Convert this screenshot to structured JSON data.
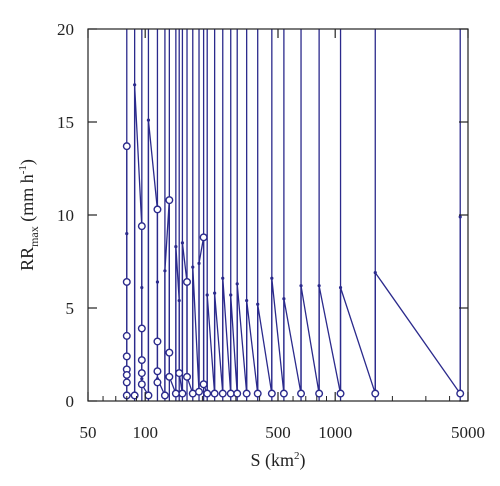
{
  "chart_data": {
    "type": "line",
    "xscale": "log",
    "xlim": [
      50,
      5000
    ],
    "ylim": [
      0,
      20
    ],
    "grid": false,
    "xticks": [
      50,
      100,
      500,
      1000,
      5000
    ],
    "xtick_labels": [
      "50",
      "100",
      "500",
      "1000",
      "5000"
    ],
    "yticks": [
      0,
      5,
      10,
      15,
      20
    ],
    "ytick_labels": [
      "0",
      "5",
      "10",
      "15",
      "20"
    ],
    "xlabel": {
      "main": "S (km",
      "sup": "2",
      "end": ")"
    },
    "ylabel": {
      "main": "RR",
      "sub": "max",
      "end": " (mm h",
      "sup": "-1",
      "end2": ")"
    },
    "colors": {
      "series": "#2b2a8c",
      "axis": "#222222",
      "background": "#ffffff"
    },
    "series": [
      {
        "line": [
          [
            80,
            13.7
          ],
          [
            80,
            9.0
          ],
          [
            80,
            6.4
          ],
          [
            80,
            3.5
          ],
          [
            80,
            2.4
          ],
          [
            80,
            1.7
          ],
          [
            80,
            1.4
          ],
          [
            80,
            1.0
          ],
          [
            80,
            0.3
          ],
          [
            88,
            0.3
          ],
          [
            88,
            17.0
          ],
          [
            96,
            9.4
          ],
          [
            96,
            6.1
          ],
          [
            96,
            3.9
          ],
          [
            96,
            2.2
          ],
          [
            96,
            1.5
          ],
          [
            96,
            1.2
          ],
          [
            96,
            0.9
          ],
          [
            104,
            0.3
          ],
          [
            104,
            15.1
          ],
          [
            116,
            10.3
          ],
          [
            116,
            6.4
          ],
          [
            116,
            3.2
          ],
          [
            116,
            1.6
          ],
          [
            116,
            1.2
          ],
          [
            127,
            0.3
          ],
          [
            127,
            7.0
          ],
          [
            134,
            10.8
          ],
          [
            134,
            2.6
          ],
          [
            134,
            1.3
          ],
          [
            145,
            0.4
          ],
          [
            145,
            8.3
          ],
          [
            151,
            5.4
          ],
          [
            151,
            1.5
          ],
          [
            157,
            0.4
          ],
          [
            157,
            8.5
          ],
          [
            166,
            6.4
          ],
          [
            166,
            1.3
          ],
          [
            178,
            0.4
          ],
          [
            178,
            7.2
          ],
          [
            192,
            0.5
          ],
          [
            192,
            7.4
          ],
          [
            203,
            8.8
          ],
          [
            203,
            0.9
          ],
          [
            212,
            0.4
          ],
          [
            212,
            5.7
          ],
          [
            232,
            0.4
          ],
          [
            232,
            5.8
          ],
          [
            256,
            0.4
          ],
          [
            256,
            6.6
          ],
          [
            282,
            0.4
          ],
          [
            282,
            5.7
          ],
          [
            305,
            0.4
          ],
          [
            305,
            6.3
          ],
          [
            342,
            0.4
          ],
          [
            342,
            5.4
          ],
          [
            391,
            0.4
          ],
          [
            391,
            5.2
          ],
          [
            464,
            0.4
          ],
          [
            464,
            6.6
          ],
          [
            537,
            0.4
          ],
          [
            537,
            5.5
          ],
          [
            661,
            0.4
          ],
          [
            661,
            6.2
          ],
          [
            823,
            0.4
          ],
          [
            823,
            6.2
          ],
          [
            1067,
            0.4
          ],
          [
            1067,
            6.1
          ],
          [
            1625,
            0.4
          ],
          [
            1625,
            6.9
          ],
          [
            4550,
            0.4
          ],
          [
            4550,
            9.9
          ]
        ],
        "circles": [
          [
            80,
            13.7
          ],
          [
            80,
            6.4
          ],
          [
            80,
            3.5
          ],
          [
            80,
            2.4
          ],
          [
            80,
            1.7
          ],
          [
            80,
            1.4
          ],
          [
            80,
            1.0
          ],
          [
            80,
            0.3
          ],
          [
            88,
            0.3
          ],
          [
            96,
            9.4
          ],
          [
            96,
            3.9
          ],
          [
            96,
            2.2
          ],
          [
            96,
            1.5
          ],
          [
            96,
            0.9
          ],
          [
            104,
            0.3
          ],
          [
            116,
            10.3
          ],
          [
            116,
            3.2
          ],
          [
            116,
            1.6
          ],
          [
            116,
            1.0
          ],
          [
            127,
            0.3
          ],
          [
            134,
            10.8
          ],
          [
            134,
            2.6
          ],
          [
            134,
            1.3
          ],
          [
            145,
            0.4
          ],
          [
            151,
            1.5
          ],
          [
            157,
            0.4
          ],
          [
            166,
            6.4
          ],
          [
            166,
            1.3
          ],
          [
            178,
            0.4
          ],
          [
            192,
            0.5
          ],
          [
            203,
            8.8
          ],
          [
            203,
            0.9
          ],
          [
            212,
            0.4
          ],
          [
            232,
            0.4
          ],
          [
            256,
            0.4
          ],
          [
            282,
            0.4
          ],
          [
            305,
            0.4
          ],
          [
            342,
            0.4
          ],
          [
            391,
            0.4
          ],
          [
            464,
            0.4
          ],
          [
            537,
            0.4
          ],
          [
            661,
            0.4
          ],
          [
            823,
            0.4
          ],
          [
            1067,
            0.4
          ],
          [
            1625,
            0.4
          ],
          [
            4550,
            0.4
          ]
        ],
        "vertical_lines": [
          80,
          88,
          96,
          104,
          116,
          127,
          134,
          145,
          151,
          157,
          166,
          178,
          192,
          203,
          212,
          232,
          256,
          282,
          305,
          342,
          391,
          464,
          537,
          661,
          823,
          1067,
          1625,
          4550
        ]
      }
    ]
  }
}
